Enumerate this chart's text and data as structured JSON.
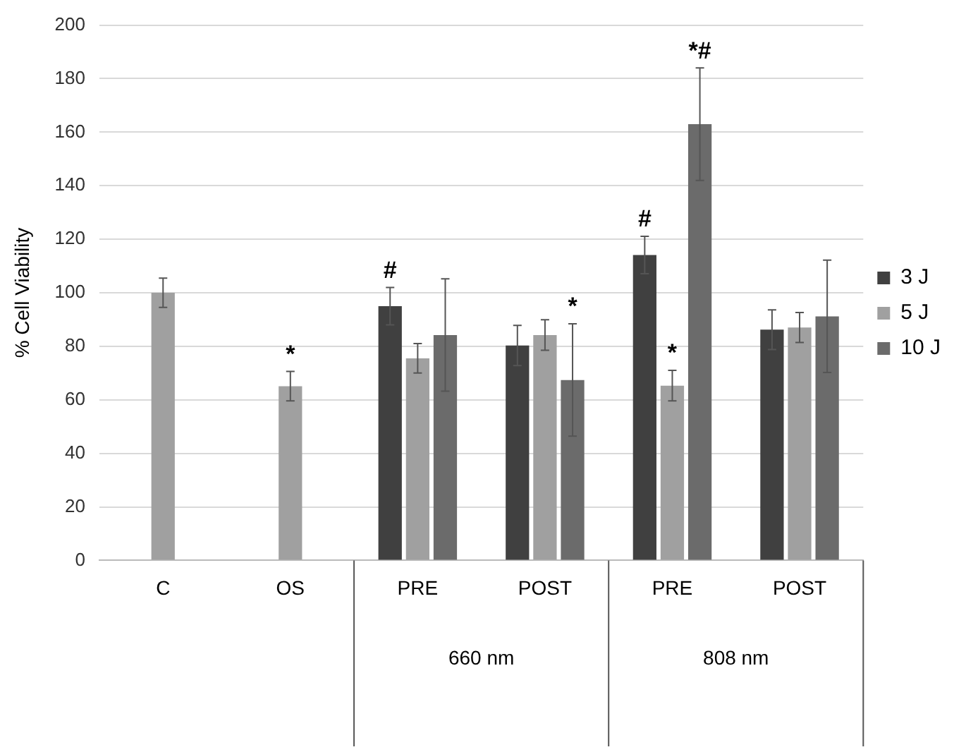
{
  "chart_data": {
    "type": "bar",
    "ylabel": "% Cell Viability",
    "categories": [
      "C",
      "OS",
      "PRE",
      "POST",
      "PRE",
      "POST"
    ],
    "series": [
      {
        "name": "3 J",
        "color": "#404040",
        "values": [
          null,
          null,
          95,
          80.3,
          114.1,
          86.2
        ],
        "errors": [
          null,
          null,
          7,
          7.5,
          7,
          7.4
        ],
        "value_labels": [
          null,
          null,
          "#",
          null,
          "#",
          null
        ]
      },
      {
        "name": "5 J",
        "color": "#a0a0a0",
        "values": [
          100,
          65.1,
          75.5,
          84.2,
          65.3,
          87
        ],
        "errors": [
          5.5,
          5.5,
          5.5,
          5.7,
          5.7,
          5.6
        ],
        "value_labels": [
          null,
          "*",
          null,
          null,
          "*",
          null
        ]
      },
      {
        "name": "10 J",
        "color": "#6b6b6b",
        "values": [
          null,
          null,
          84.2,
          67.4,
          163,
          91.2
        ],
        "errors": [
          null,
          null,
          21,
          21,
          21,
          21
        ],
        "value_labels": [
          null,
          null,
          null,
          "*",
          "*#",
          null
        ]
      }
    ],
    "annotations": [
      "660 nm",
      "808 nm"
    ],
    "ylim": [
      0,
      200
    ],
    "yticks": [
      0,
      20,
      40,
      60,
      80,
      100,
      120,
      140,
      160,
      180,
      200
    ],
    "grid": "y",
    "legend": "right"
  }
}
